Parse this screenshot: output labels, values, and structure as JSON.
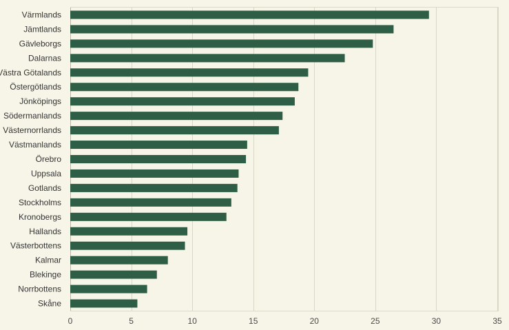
{
  "chart_data": {
    "type": "bar",
    "orientation": "horizontal",
    "categories": [
      "Värmlands",
      "Jämtlands",
      "Gävleborgs",
      "Dalarnas",
      "Västra Götalands",
      "Östergötlands",
      "Jönköpings",
      "Södermanlands",
      "Västernorrlands",
      "Västmanlands",
      "Örebro",
      "Uppsala",
      "Gotlands",
      "Stockholms",
      "Kronobergs",
      "Hallands",
      "Västerbottens",
      "Kalmar",
      "Blekinge",
      "Norrbottens",
      "Skåne"
    ],
    "values": [
      29.4,
      26.5,
      24.8,
      22.5,
      19.5,
      18.7,
      18.4,
      17.4,
      17.1,
      14.5,
      14.4,
      13.8,
      13.7,
      13.2,
      12.8,
      9.6,
      9.4,
      8.0,
      7.1,
      6.3,
      5.5
    ],
    "xlim": [
      0,
      35
    ],
    "xticks": [
      0,
      5,
      10,
      15,
      20,
      25,
      30,
      35
    ],
    "grid": true,
    "title": "",
    "xlabel": "",
    "ylabel": "",
    "colors": {
      "bar": "#2f5e46",
      "background": "#f7f5e8",
      "grid": "#d9d6c6"
    }
  }
}
